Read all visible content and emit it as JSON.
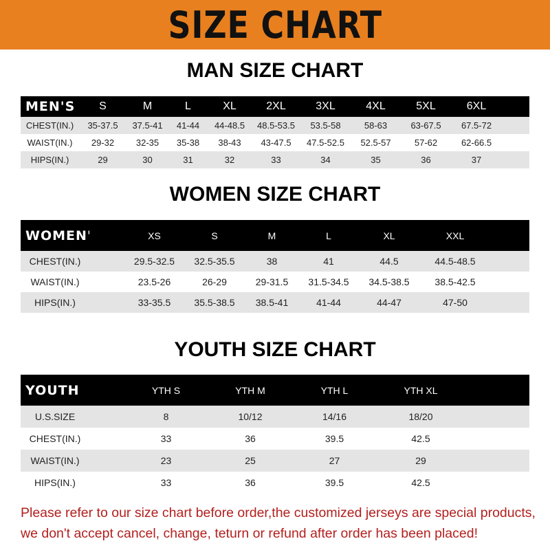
{
  "banner": "SIZE CHART",
  "men": {
    "title": "MAN SIZE CHART",
    "header": "MEN'S",
    "sizes": [
      "S",
      "M",
      "L",
      "XL",
      "2XL",
      "3XL",
      "4XL",
      "5XL",
      "6XL"
    ],
    "rows": [
      {
        "label": "CHEST(IN.)",
        "values": [
          "35-37.5",
          "37.5-41",
          "41-44",
          "44-48.5",
          "48.5-53.5",
          "53.5-58",
          "58-63",
          "63-67.5",
          "67.5-72"
        ]
      },
      {
        "label": "WAIST(IN.)",
        "values": [
          "29-32",
          "32-35",
          "35-38",
          "38-43",
          "43-47.5",
          "47.5-52.5",
          "52.5-57",
          "57-62",
          "62-66.5"
        ]
      },
      {
        "label": "HIPS(IN.)",
        "values": [
          "29",
          "30",
          "31",
          "32",
          "33",
          "34",
          "35",
          "36",
          "37"
        ]
      }
    ]
  },
  "women": {
    "title": "WOMEN SIZE CHART",
    "header": "WOMEN'S",
    "sizes": [
      "XS",
      "S",
      "M",
      "L",
      "XL",
      "XXL"
    ],
    "rows": [
      {
        "label": "CHEST(IN.)",
        "values": [
          "29.5-32.5",
          "32.5-35.5",
          "38",
          "41",
          "44.5",
          "44.5-48.5"
        ]
      },
      {
        "label": "WAIST(IN.)",
        "values": [
          "23.5-26",
          "26-29",
          "29-31.5",
          "31.5-34.5",
          "34.5-38.5",
          "38.5-42.5"
        ]
      },
      {
        "label": "HIPS(IN.)",
        "values": [
          "33-35.5",
          "35.5-38.5",
          "38.5-41",
          "41-44",
          "44-47",
          "47-50"
        ]
      }
    ]
  },
  "youth": {
    "title": "YOUTH SIZE CHART",
    "header": "YOUTH",
    "sizes": [
      "YTH S",
      "YTH M",
      "YTH L",
      "YTH XL"
    ],
    "rows": [
      {
        "label": "U.S.SIZE",
        "values": [
          "8",
          "10/12",
          "14/16",
          "18/20"
        ]
      },
      {
        "label": "CHEST(IN.)",
        "values": [
          "33",
          "36",
          "39.5",
          "42.5"
        ]
      },
      {
        "label": "WAIST(IN.)",
        "values": [
          "23",
          "25",
          "27",
          "29"
        ]
      },
      {
        "label": "HIPS(IN.)",
        "values": [
          "33",
          "36",
          "39.5",
          "42.5"
        ]
      }
    ]
  },
  "note": {
    "line1": "Please refer to our size chart before order,the customized jerseys are special products,",
    "line2": "we don't accept cancel, change, teturn or refund after order has been placed!"
  },
  "colors": {
    "banner": "#E8801F",
    "header_bg": "#000000",
    "stripe": "#e4e4e4",
    "note": "#b3201e"
  }
}
